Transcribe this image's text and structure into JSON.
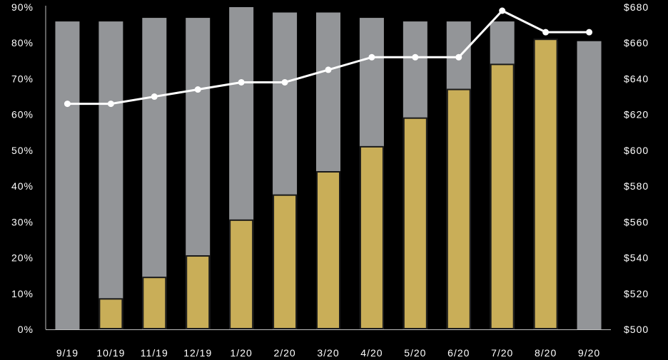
{
  "colors": {
    "background": "#000000",
    "total_bar": "#939598",
    "filled_bar": "#c9ae58",
    "filled_bar_outline": "#1a1a1a",
    "line": "#ffffff",
    "text": "#ffffff"
  },
  "chart_data": {
    "type": "bar",
    "categories": [
      "9/19",
      "10/19",
      "11/19",
      "12/19",
      "1/20",
      "2/20",
      "3/20",
      "4/20",
      "5/20",
      "6/20",
      "7/20",
      "8/20",
      "9/20"
    ],
    "series": [
      {
        "kind": "bar",
        "axis": "left",
        "values": [
          86,
          86,
          87,
          87,
          90,
          88.5,
          88.5,
          87,
          86,
          86,
          86,
          80.5,
          80.5
        ]
      },
      {
        "kind": "bar",
        "axis": "left",
        "values": [
          null,
          8.5,
          14.5,
          20.5,
          30.5,
          37.5,
          44,
          51,
          59,
          67,
          74,
          81,
          null
        ]
      },
      {
        "kind": "line",
        "axis": "right",
        "values": [
          626,
          626,
          630,
          634,
          638,
          638,
          645,
          652,
          652,
          652,
          678,
          666,
          666
        ]
      }
    ],
    "y_left": {
      "ticks": [
        "0%",
        "10%",
        "20%",
        "30%",
        "40%",
        "50%",
        "60%",
        "70%",
        "80%",
        "90%"
      ],
      "ylim": [
        0,
        90
      ]
    },
    "y_right": {
      "ticks": [
        "$500",
        "$520",
        "$540",
        "$560",
        "$580",
        "$600",
        "$620",
        "$640",
        "$660",
        "$680"
      ],
      "ylim": [
        500,
        680
      ]
    },
    "legend": "none",
    "grid": false
  }
}
